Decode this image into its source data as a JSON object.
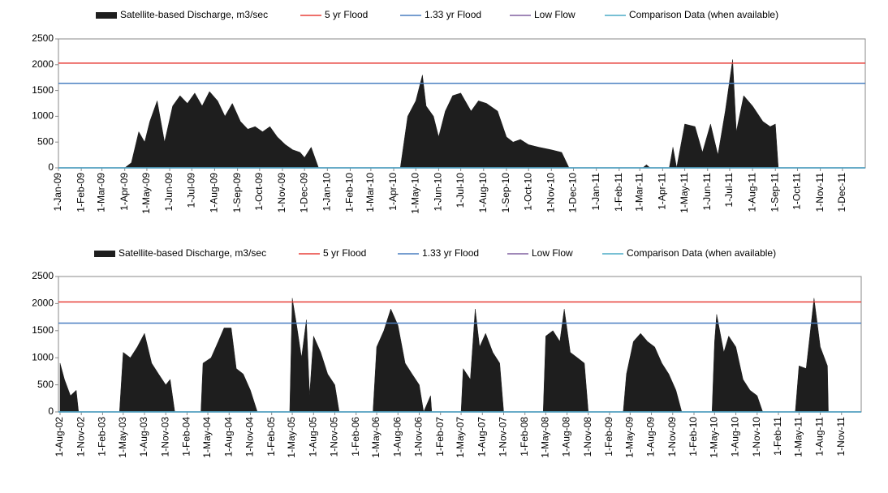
{
  "chart_data": [
    {
      "type": "area",
      "x": [
        "2009-01-01",
        "2009-04-01",
        "2009-04-10",
        "2009-04-20",
        "2009-04-28",
        "2009-05-05",
        "2009-05-15",
        "2009-05-25",
        "2009-06-05",
        "2009-06-15",
        "2009-06-25",
        "2009-07-05",
        "2009-07-15",
        "2009-07-25",
        "2009-08-05",
        "2009-08-15",
        "2009-08-25",
        "2009-09-05",
        "2009-09-15",
        "2009-09-25",
        "2009-10-05",
        "2009-10-15",
        "2009-10-25",
        "2009-11-05",
        "2009-11-15",
        "2009-11-25",
        "2009-12-01",
        "2009-12-10",
        "2009-12-20",
        "2010-04-10",
        "2010-04-20",
        "2010-05-01",
        "2010-05-10",
        "2010-05-15",
        "2010-05-25",
        "2010-06-01",
        "2010-06-10",
        "2010-06-20",
        "2010-07-01",
        "2010-07-15",
        "2010-07-25",
        "2010-08-05",
        "2010-08-20",
        "2010-09-01",
        "2010-09-10",
        "2010-09-20",
        "2010-10-01",
        "2010-10-15",
        "2010-11-01",
        "2010-11-15",
        "2010-11-25",
        "2011-03-05",
        "2011-03-10",
        "2011-03-15",
        "2011-04-10",
        "2011-04-15",
        "2011-04-20",
        "2011-05-01",
        "2011-05-15",
        "2011-05-25",
        "2011-06-05",
        "2011-06-15",
        "2011-06-25",
        "2011-07-05",
        "2011-07-10",
        "2011-07-20",
        "2011-08-01",
        "2011-08-15",
        "2011-08-25",
        "2011-09-01",
        "2011-09-05",
        "2011-12-31"
      ],
      "series": [
        {
          "name": "Satellite-based Discharge, m3/sec",
          "color": "#1e1e1e",
          "type": "area",
          "values": [
            0,
            0,
            100,
            700,
            500,
            900,
            1300,
            500,
            1200,
            1400,
            1250,
            1450,
            1200,
            1480,
            1300,
            1000,
            1250,
            900,
            750,
            800,
            700,
            800,
            600,
            450,
            350,
            300,
            200,
            400,
            0,
            0,
            1000,
            1300,
            1800,
            1200,
            1000,
            600,
            1100,
            1400,
            1450,
            1100,
            1300,
            1250,
            1100,
            600,
            500,
            550,
            450,
            400,
            350,
            300,
            0,
            0,
            60,
            0,
            0,
            400,
            0,
            850,
            800,
            300,
            850,
            250,
            1100,
            2100,
            700,
            1400,
            1200,
            900,
            800,
            850,
            0,
            0
          ]
        },
        {
          "name": "5 yr Flood",
          "color": "#e8413a",
          "type": "hline",
          "value": 2030
        },
        {
          "name": "1.33 yr Flood",
          "color": "#4a7fc1",
          "type": "hline",
          "value": 1640
        },
        {
          "name": "Low Flow",
          "color": "#8060a0",
          "type": "hline",
          "value": 0
        },
        {
          "name": "Comparison Data (when available)",
          "color": "#4bacc6",
          "type": "hline",
          "value": 0
        }
      ],
      "xlim": [
        "2009-01-01",
        "2012-01-01"
      ],
      "xticks": [
        {
          "value": "2009-01-01",
          "label": "1-Jan-09"
        },
        {
          "value": "2009-02-01",
          "label": "1-Feb-09"
        },
        {
          "value": "2009-03-01",
          "label": "1-Mar-09"
        },
        {
          "value": "2009-04-01",
          "label": "1-Apr-09"
        },
        {
          "value": "2009-05-01",
          "label": "1-May-09"
        },
        {
          "value": "2009-06-01",
          "label": "1-Jun-09"
        },
        {
          "value": "2009-07-01",
          "label": "1-Jul-09"
        },
        {
          "value": "2009-08-01",
          "label": "1-Aug-09"
        },
        {
          "value": "2009-09-01",
          "label": "1-Sep-09"
        },
        {
          "value": "2009-10-01",
          "label": "1-Oct-09"
        },
        {
          "value": "2009-11-01",
          "label": "1-Nov-09"
        },
        {
          "value": "2009-12-01",
          "label": "1-Dec-09"
        },
        {
          "value": "2010-01-01",
          "label": "1-Jan-10"
        },
        {
          "value": "2010-02-01",
          "label": "1-Feb-10"
        },
        {
          "value": "2010-03-01",
          "label": "1-Mar-10"
        },
        {
          "value": "2010-04-01",
          "label": "1-Apr-10"
        },
        {
          "value": "2010-05-01",
          "label": "1-May-10"
        },
        {
          "value": "2010-06-01",
          "label": "1-Jun-10"
        },
        {
          "value": "2010-07-01",
          "label": "1-Jul-10"
        },
        {
          "value": "2010-08-01",
          "label": "1-Aug-10"
        },
        {
          "value": "2010-09-01",
          "label": "1-Sep-10"
        },
        {
          "value": "2010-10-01",
          "label": "1-Oct-10"
        },
        {
          "value": "2010-11-01",
          "label": "1-Nov-10"
        },
        {
          "value": "2010-12-01",
          "label": "1-Dec-10"
        },
        {
          "value": "2011-01-01",
          "label": "1-Jan-11"
        },
        {
          "value": "2011-02-01",
          "label": "1-Feb-11"
        },
        {
          "value": "2011-03-01",
          "label": "1-Mar-11"
        },
        {
          "value": "2011-04-01",
          "label": "1-Apr-11"
        },
        {
          "value": "2011-05-01",
          "label": "1-May-11"
        },
        {
          "value": "2011-06-01",
          "label": "1-Jun-11"
        },
        {
          "value": "2011-07-01",
          "label": "1-Jul-11"
        },
        {
          "value": "2011-08-01",
          "label": "1-Aug-11"
        },
        {
          "value": "2011-09-01",
          "label": "1-Sep-11"
        },
        {
          "value": "2011-10-01",
          "label": "1-Oct-11"
        },
        {
          "value": "2011-11-01",
          "label": "1-Nov-11"
        },
        {
          "value": "2011-12-01",
          "label": "1-Dec-11"
        }
      ],
      "ylim": [
        0,
        2500
      ],
      "yticks": [
        0,
        500,
        1000,
        1500,
        2000,
        2500
      ],
      "grid": false,
      "legend": "top"
    },
    {
      "type": "area",
      "x": [
        "2002-08-01",
        "2002-08-20",
        "2002-09-15",
        "2002-10-10",
        "2002-10-20",
        "2003-04-15",
        "2003-05-01",
        "2003-06-01",
        "2003-07-01",
        "2003-08-01",
        "2003-09-01",
        "2003-10-01",
        "2003-11-01",
        "2003-11-20",
        "2003-12-10",
        "2004-04-01",
        "2004-04-10",
        "2004-05-15",
        "2004-06-15",
        "2004-07-10",
        "2004-08-10",
        "2004-09-01",
        "2004-10-01",
        "2004-11-01",
        "2004-12-01",
        "2005-04-20",
        "2005-05-01",
        "2005-05-20",
        "2005-06-10",
        "2005-07-01",
        "2005-07-15",
        "2005-08-01",
        "2005-09-01",
        "2005-10-01",
        "2005-11-01",
        "2005-11-20",
        "2006-04-15",
        "2006-05-01",
        "2006-06-01",
        "2006-07-01",
        "2006-08-01",
        "2006-09-01",
        "2006-10-01",
        "2006-11-01",
        "2006-11-20",
        "2006-12-20",
        "2006-12-25",
        "2007-05-01",
        "2007-05-10",
        "2007-06-10",
        "2007-07-01",
        "2007-07-20",
        "2007-08-15",
        "2007-09-15",
        "2007-10-15",
        "2007-11-01",
        "2008-04-20",
        "2008-05-01",
        "2008-06-01",
        "2008-07-01",
        "2008-07-20",
        "2008-08-15",
        "2008-09-15",
        "2008-10-15",
        "2008-11-01",
        "2009-04-01",
        "2009-04-15",
        "2009-05-15",
        "2009-06-15",
        "2009-07-15",
        "2009-08-15",
        "2009-09-15",
        "2009-10-15",
        "2009-11-15",
        "2009-12-10",
        "2010-04-20",
        "2010-05-01",
        "2010-05-10",
        "2010-06-10",
        "2010-07-01",
        "2010-08-01",
        "2010-09-01",
        "2010-10-01",
        "2010-11-01",
        "2010-11-25",
        "2011-04-15",
        "2011-05-01",
        "2011-06-01",
        "2011-07-05",
        "2011-08-01",
        "2011-09-01",
        "2011-09-05",
        "2011-12-31"
      ],
      "series": [
        {
          "name": "Satellite-based Discharge, m3/sec",
          "color": "#1e1e1e",
          "type": "area",
          "values": [
            900,
            600,
            300,
            400,
            0,
            0,
            1100,
            1000,
            1200,
            1450,
            900,
            700,
            500,
            600,
            0,
            0,
            900,
            1000,
            1300,
            1550,
            1550,
            800,
            700,
            400,
            0,
            0,
            2100,
            1600,
            1000,
            1700,
            300,
            1400,
            1100,
            700,
            500,
            0,
            0,
            1200,
            1500,
            1900,
            1600,
            900,
            700,
            500,
            0,
            300,
            0,
            0,
            800,
            600,
            1900,
            1200,
            1450,
            1100,
            900,
            0,
            0,
            1400,
            1500,
            1300,
            1900,
            1100,
            1000,
            900,
            0,
            0,
            700,
            1300,
            1450,
            1300,
            1200,
            900,
            700,
            400,
            0,
            0,
            1300,
            1800,
            1100,
            1400,
            1200,
            600,
            400,
            300,
            0,
            0,
            850,
            800,
            2100,
            1200,
            850,
            0,
            0
          ]
        },
        {
          "name": "5 yr Flood",
          "color": "#e8413a",
          "type": "hline",
          "value": 2030
        },
        {
          "name": "1.33 yr Flood",
          "color": "#4a7fc1",
          "type": "hline",
          "value": 1640
        },
        {
          "name": "Low Flow",
          "color": "#8060a0",
          "type": "hline",
          "value": 0
        },
        {
          "name": "Comparison Data (when available)",
          "color": "#4bacc6",
          "type": "hline",
          "value": 0
        }
      ],
      "xlim": [
        "2002-07-25",
        "2012-01-25"
      ],
      "xticks": [
        {
          "value": "2002-08-01",
          "label": "1-Aug-02"
        },
        {
          "value": "2002-11-01",
          "label": "1-Nov-02"
        },
        {
          "value": "2003-02-01",
          "label": "1-Feb-03"
        },
        {
          "value": "2003-05-01",
          "label": "1-May-03"
        },
        {
          "value": "2003-08-01",
          "label": "1-Aug-03"
        },
        {
          "value": "2003-11-01",
          "label": "1-Nov-03"
        },
        {
          "value": "2004-02-01",
          "label": "1-Feb-04"
        },
        {
          "value": "2004-05-01",
          "label": "1-May-04"
        },
        {
          "value": "2004-08-01",
          "label": "1-Aug-04"
        },
        {
          "value": "2004-11-01",
          "label": "1-Nov-04"
        },
        {
          "value": "2005-02-01",
          "label": "1-Feb-05"
        },
        {
          "value": "2005-05-01",
          "label": "1-May-05"
        },
        {
          "value": "2005-08-01",
          "label": "1-Aug-05"
        },
        {
          "value": "2005-11-01",
          "label": "1-Nov-05"
        },
        {
          "value": "2006-02-01",
          "label": "1-Feb-06"
        },
        {
          "value": "2006-05-01",
          "label": "1-May-06"
        },
        {
          "value": "2006-08-01",
          "label": "1-Aug-06"
        },
        {
          "value": "2006-11-01",
          "label": "1-Nov-06"
        },
        {
          "value": "2007-02-01",
          "label": "1-Feb-07"
        },
        {
          "value": "2007-05-01",
          "label": "1-May-07"
        },
        {
          "value": "2007-08-01",
          "label": "1-Aug-07"
        },
        {
          "value": "2007-11-01",
          "label": "1-Nov-07"
        },
        {
          "value": "2008-02-01",
          "label": "1-Feb-08"
        },
        {
          "value": "2008-05-01",
          "label": "1-May-08"
        },
        {
          "value": "2008-08-01",
          "label": "1-Aug-08"
        },
        {
          "value": "2008-11-01",
          "label": "1-Nov-08"
        },
        {
          "value": "2009-02-01",
          "label": "1-Feb-09"
        },
        {
          "value": "2009-05-01",
          "label": "1-May-09"
        },
        {
          "value": "2009-08-01",
          "label": "1-Aug-09"
        },
        {
          "value": "2009-11-01",
          "label": "1-Nov-09"
        },
        {
          "value": "2010-02-01",
          "label": "1-Feb-10"
        },
        {
          "value": "2010-05-01",
          "label": "1-May-10"
        },
        {
          "value": "2010-08-01",
          "label": "1-Aug-10"
        },
        {
          "value": "2010-11-01",
          "label": "1-Nov-10"
        },
        {
          "value": "2011-02-01",
          "label": "1-Feb-11"
        },
        {
          "value": "2011-05-01",
          "label": "1-May-11"
        },
        {
          "value": "2011-08-01",
          "label": "1-Aug-11"
        },
        {
          "value": "2011-11-01",
          "label": "1-Nov-11"
        }
      ],
      "ylim": [
        0,
        2500
      ],
      "yticks": [
        0,
        500,
        1000,
        1500,
        2000,
        2500
      ],
      "grid": false,
      "legend": "top"
    }
  ]
}
